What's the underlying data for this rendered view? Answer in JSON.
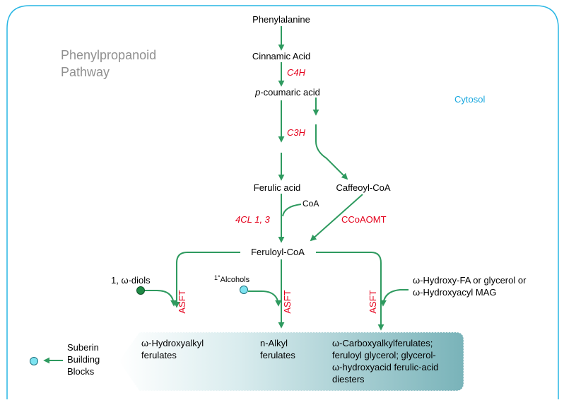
{
  "title": {
    "line1": "Phenylpropanoid",
    "line2": "Pathway"
  },
  "compartment": "Cytosol",
  "metabolites": {
    "phenylalanine": "Phenylalanine",
    "cinnamic_acid": "Cinnamic Acid",
    "p_coumaric_prefix": "p",
    "p_coumaric_rest": "-coumaric acid",
    "ferulic_acid": "Ferulic acid",
    "caffeoyl_coa": "Caffeoyl-CoA",
    "coa": "CoA",
    "feruloyl_coa": "Feruloyl-CoA",
    "diols": "1, ω-diols",
    "alcohols_sup": "1°",
    "alcohols": "Alcohols",
    "hydroxy_fa_line1": "ω-Hydroxy-FA or glycerol or",
    "hydroxy_fa_line2": "ω-Hydroxyacyl MAG"
  },
  "enzymes": {
    "c4h": "C4H",
    "c3h": "C3H",
    "cl": "4CL 1, 3",
    "ccoaomt": "CCoAOMT",
    "asft": "ASFT"
  },
  "products": {
    "hydroxyalkyl_line1": "ω-Hydroxyalkyl",
    "hydroxyalkyl_line2": "ferulates",
    "alkyl_line1": "n-Alkyl",
    "alkyl_line2": "ferulates",
    "carboxy_line1": "ω-Carboxyalkylferulates;",
    "carboxy_line2": "feruloyl glycerol; glycerol-",
    "carboxy_line3": "ω-hydroxyacid ferulic-acid",
    "carboxy_line4": "diesters"
  },
  "suberin": {
    "line1": "Suberin",
    "line2": "Building",
    "line3": "Blocks"
  },
  "colors": {
    "arrow": "#2e9a5f",
    "enzyme": "#e4001b",
    "border": "#27b6e4",
    "compartment_label": "#1aa8df",
    "title": "#909090",
    "node_cyan": "#7de3f0",
    "node_green": "#1f8a45"
  }
}
